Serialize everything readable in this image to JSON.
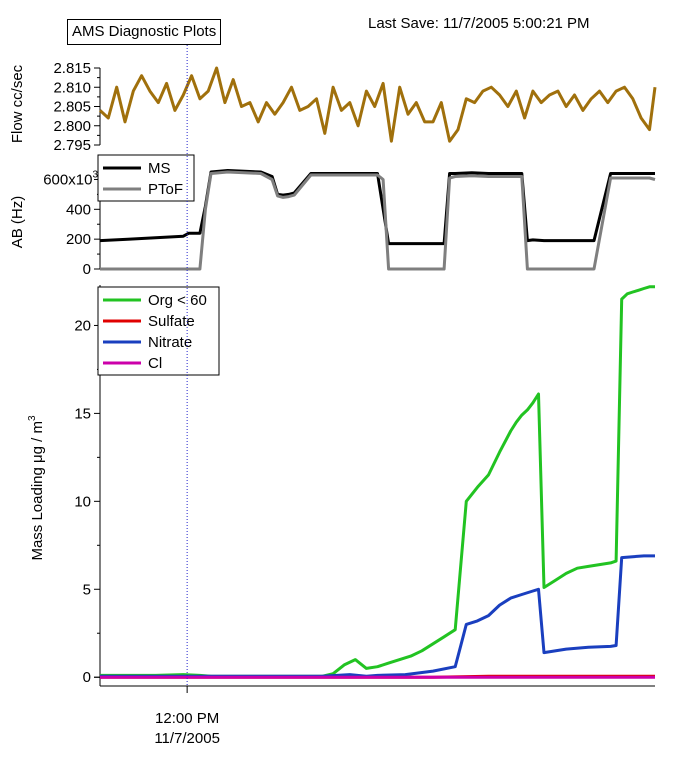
{
  "header": {
    "title": "AMS Diagnostic Plots",
    "last_save": "Last Save: 11/7/2005 5:00:21 PM"
  },
  "chart_data": [
    {
      "type": "line",
      "name": "flow",
      "ylabel": "Flow cc/sec",
      "ylim": [
        2.795,
        2.815
      ],
      "yticks": [
        "2.795",
        "2.800",
        "2.805",
        "2.810",
        "2.815"
      ],
      "xlim": [
        0,
        100
      ],
      "series": [
        {
          "name": "Flow",
          "color": "#a0700c",
          "x": [
            0,
            1.5,
            3,
            4.5,
            6,
            7.5,
            9,
            10.5,
            12,
            13.5,
            15,
            16.5,
            18,
            19.5,
            21,
            22.5,
            24,
            25.5,
            27,
            28.5,
            30,
            31.5,
            33,
            34.5,
            36,
            37.5,
            39,
            40.5,
            42,
            43.5,
            45,
            46.5,
            48,
            49.5,
            51,
            52.5,
            54,
            55.5,
            57,
            58.5,
            60,
            61.5,
            63,
            64.5,
            66,
            67.5,
            69,
            70.5,
            72,
            73.5,
            75,
            76.5,
            78,
            79.5,
            81,
            82.5,
            84,
            85.5,
            87,
            88.5,
            90,
            91.5,
            93,
            94.5,
            96,
            97.5,
            99,
            100
          ],
          "y": [
            2.804,
            2.802,
            2.81,
            2.801,
            2.809,
            2.813,
            2.809,
            2.806,
            2.811,
            2.804,
            2.808,
            2.813,
            2.807,
            2.809,
            2.815,
            2.806,
            2.812,
            2.805,
            2.806,
            2.801,
            2.806,
            2.803,
            2.806,
            2.81,
            2.804,
            2.805,
            2.807,
            2.798,
            2.81,
            2.804,
            2.806,
            2.8,
            2.809,
            2.805,
            2.811,
            2.796,
            2.81,
            2.803,
            2.806,
            2.801,
            2.801,
            2.806,
            2.796,
            2.799,
            2.807,
            2.806,
            2.809,
            2.81,
            2.808,
            2.805,
            2.809,
            2.802,
            2.809,
            2.806,
            2.808,
            2.809,
            2.805,
            2.808,
            2.804,
            2.807,
            2.809,
            2.806,
            2.809,
            2.81,
            2.807,
            2.802,
            2.799,
            2.81
          ]
        }
      ]
    },
    {
      "type": "line",
      "name": "ab",
      "ylabel": "AB (Hz)",
      "ylim": [
        0,
        650000
      ],
      "yticks": [
        "0",
        "200",
        "400",
        "600x10"
      ],
      "ytick_values": [
        0,
        200000,
        400000,
        600000
      ],
      "yexp": "3",
      "xlim": [
        0,
        100
      ],
      "legend": [
        "MS",
        "PToF"
      ],
      "legend_position": "top-left",
      "series": [
        {
          "name": "MS",
          "color": "#000000",
          "x": [
            0,
            5,
            10,
            15,
            16,
            17,
            18,
            19,
            20,
            23,
            26,
            29,
            31,
            32,
            33,
            34,
            35,
            38,
            41,
            42,
            43,
            44,
            47,
            50,
            52,
            55,
            58,
            60,
            61,
            62,
            63,
            64,
            67,
            70,
            73,
            74,
            75,
            76,
            77,
            78,
            80,
            83,
            86,
            89,
            92,
            94,
            95,
            96,
            97,
            99,
            100
          ],
          "y": [
            190000,
            200000,
            210000,
            220000,
            240000,
            240000,
            240000,
            420000,
            650000,
            660000,
            655000,
            650000,
            620000,
            500000,
            495000,
            500000,
            510000,
            640000,
            640000,
            640000,
            640000,
            640000,
            640000,
            640000,
            170000,
            170000,
            170000,
            170000,
            170000,
            170000,
            640000,
            640000,
            645000,
            640000,
            640000,
            640000,
            640000,
            640000,
            190000,
            195000,
            190000,
            190000,
            190000,
            190000,
            640000,
            640000,
            640000,
            640000,
            640000,
            640000,
            640000
          ]
        },
        {
          "name": "PToF",
          "color": "#7f7f7f",
          "x": [
            0,
            5,
            10,
            15,
            16,
            17,
            18,
            19,
            20,
            23,
            26,
            29,
            31,
            32,
            33,
            34,
            35,
            38,
            41,
            42,
            43,
            44,
            47,
            50,
            51,
            52,
            55,
            58,
            60,
            61,
            62,
            63,
            64,
            67,
            70,
            73,
            74,
            75,
            76,
            77,
            78,
            80,
            83,
            86,
            89,
            92,
            94,
            95,
            96,
            97,
            99,
            100
          ],
          "y": [
            0,
            0,
            0,
            0,
            0,
            0,
            0,
            400000,
            640000,
            650000,
            645000,
            640000,
            600000,
            490000,
            480000,
            485000,
            495000,
            630000,
            630000,
            630000,
            630000,
            630000,
            630000,
            630000,
            600000,
            0,
            0,
            0,
            0,
            0,
            0,
            610000,
            620000,
            625000,
            620000,
            620000,
            620000,
            620000,
            620000,
            0,
            0,
            0,
            0,
            0,
            0,
            610000,
            610000,
            610000,
            610000,
            610000,
            610000,
            600000
          ]
        }
      ]
    },
    {
      "type": "line",
      "name": "mass",
      "ylabel": "Mass Loading μg / m",
      "ylabel_sup": "3",
      "ylim": [
        -0.5,
        22.3
      ],
      "yticks": [
        "0",
        "5",
        "10",
        "15",
        "20"
      ],
      "ytick_values": [
        0,
        5,
        10,
        15,
        20
      ],
      "xlim": [
        0,
        100
      ],
      "x_tick_label": "12:00 PM",
      "x_tick_sublabel": "11/7/2005",
      "x_tick_value": 15.7,
      "marker_line_value": 15.7,
      "legend": [
        "Org < 60",
        "Sulfate",
        "Nitrate",
        "Cl"
      ],
      "legend_position": "top-left",
      "series": [
        {
          "name": "Org < 60",
          "color": "#22c322",
          "x": [
            0,
            5,
            10,
            15,
            18,
            20,
            25,
            30,
            35,
            40,
            42,
            44,
            46,
            48,
            50,
            52,
            54,
            56,
            58,
            60,
            62,
            64,
            66,
            68,
            70,
            72,
            74,
            75,
            76,
            77,
            78,
            79,
            80,
            82,
            84,
            86,
            88,
            90,
            92,
            93,
            94,
            95,
            96,
            97,
            98,
            99,
            100
          ],
          "y": [
            0.1,
            0.1,
            0.1,
            0.15,
            0.1,
            0.05,
            0.05,
            0.05,
            0.05,
            0.05,
            0.2,
            0.7,
            1.0,
            0.5,
            0.6,
            0.8,
            1.0,
            1.2,
            1.5,
            1.9,
            2.3,
            2.7,
            10.0,
            10.8,
            11.5,
            12.8,
            14.0,
            14.5,
            14.9,
            15.2,
            15.6,
            16.1,
            5.1,
            5.5,
            5.9,
            6.2,
            6.3,
            6.4,
            6.5,
            6.6,
            21.5,
            21.8,
            21.9,
            22.0,
            22.1,
            22.2,
            22.2
          ]
        },
        {
          "name": "Sulfate",
          "color": "#e00000",
          "x": [
            0,
            10,
            20,
            30,
            40,
            50,
            60,
            70,
            80,
            90,
            100
          ],
          "y": [
            0.0,
            0.0,
            0.0,
            0.0,
            0.0,
            0.0,
            0.0,
            0.05,
            0.05,
            0.05,
            0.05
          ]
        },
        {
          "name": "Nitrate",
          "color": "#1a3fbf",
          "x": [
            0,
            5,
            10,
            15,
            20,
            25,
            30,
            35,
            40,
            45,
            48,
            50,
            55,
            60,
            64,
            65,
            66,
            68,
            70,
            72,
            74,
            76,
            78,
            79,
            80,
            84,
            88,
            92,
            93,
            94,
            96,
            98,
            100
          ],
          "y": [
            0.05,
            0.05,
            0.05,
            0.05,
            0.05,
            0.05,
            0.05,
            0.05,
            0.05,
            0.15,
            0.05,
            0.1,
            0.15,
            0.35,
            0.6,
            1.8,
            3.0,
            3.2,
            3.5,
            4.1,
            4.5,
            4.7,
            4.9,
            5.0,
            1.4,
            1.6,
            1.7,
            1.75,
            1.8,
            6.8,
            6.85,
            6.9,
            6.9
          ]
        },
        {
          "name": "Cl",
          "color": "#cc00aa",
          "x": [
            0,
            20,
            40,
            60,
            80,
            100
          ],
          "y": [
            0.0,
            0.0,
            0.0,
            0.0,
            0.0,
            0.0
          ]
        }
      ]
    }
  ]
}
